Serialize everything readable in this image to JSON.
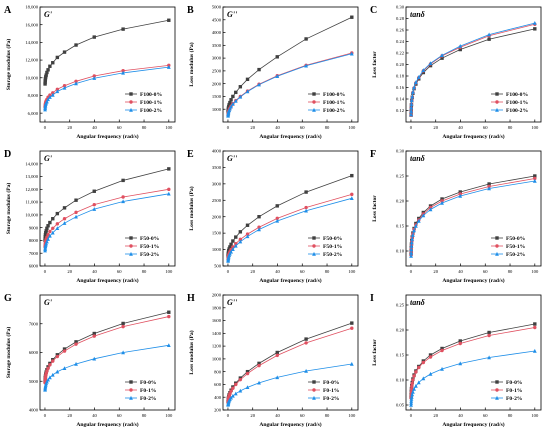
{
  "series_colors": [
    "#404040",
    "#e05060",
    "#1e8ee8"
  ],
  "series_markers": [
    "square",
    "circle",
    "triangle"
  ],
  "shared_x": [
    0.1,
    0.158,
    0.251,
    0.398,
    0.631,
    1,
    1.58,
    2.51,
    3.98,
    6.31,
    10,
    15.8,
    25.1,
    39.8,
    63.1,
    100
  ],
  "chart_data": [
    {
      "panel": "A",
      "type": "line",
      "annotation": "G'",
      "xlabel": "Angular frequency (rad/s)",
      "ylabel": "Storage modulus (Pa)",
      "xlim": [
        -4,
        105
      ],
      "ylim": [
        5000,
        18000
      ],
      "xticks": [
        0,
        20,
        40,
        60,
        80,
        100
      ],
      "yticks": [
        6000,
        8000,
        10000,
        12000,
        14000,
        16000,
        18000
      ],
      "ytick_labels": [
        "6,000",
        "8,000",
        "10,000",
        "12,000",
        "14,000",
        "16,000",
        "18,000"
      ],
      "legend": "lower-right",
      "series": [
        {
          "name": "F100-0%",
          "values": [
            9300,
            9500,
            9700,
            9900,
            10100,
            10300,
            10600,
            10900,
            11300,
            11700,
            12300,
            12900,
            13700,
            14600,
            15500,
            16500
          ]
        },
        {
          "name": "F100-1%",
          "values": [
            6700,
            6800,
            6950,
            7100,
            7250,
            7400,
            7550,
            7800,
            8050,
            8300,
            8700,
            9100,
            9600,
            10200,
            10800,
            11400
          ]
        },
        {
          "name": "F100-2%",
          "values": [
            6400,
            6550,
            6700,
            6850,
            7000,
            7150,
            7300,
            7550,
            7800,
            8050,
            8450,
            8850,
            9350,
            9950,
            10550,
            11200
          ]
        }
      ]
    },
    {
      "panel": "B",
      "type": "line",
      "annotation": "G''",
      "xlabel": "Angular frequency (rad/s)",
      "ylabel": "Loss modulus (Pa)",
      "xlim": [
        -4,
        105
      ],
      "ylim": [
        500,
        5000
      ],
      "xticks": [
        0,
        20,
        40,
        60,
        80,
        100
      ],
      "yticks": [
        1000,
        1500,
        2000,
        2500,
        3000,
        3500,
        4000,
        4500,
        5000
      ],
      "ytick_labels": [
        "1000",
        "1500",
        "2000",
        "2500",
        "3000",
        "3500",
        "4000",
        "4500",
        "5000"
      ],
      "legend": "lower-right",
      "series": [
        {
          "name": "F100-0%",
          "values": [
            900,
            950,
            1000,
            1050,
            1110,
            1180,
            1260,
            1370,
            1500,
            1660,
            1880,
            2170,
            2550,
            3050,
            3750,
            4600
          ]
        },
        {
          "name": "F100-1%",
          "values": [
            760,
            800,
            840,
            880,
            930,
            980,
            1040,
            1120,
            1220,
            1340,
            1500,
            1710,
            1980,
            2310,
            2720,
            3200
          ]
        },
        {
          "name": "F100-2%",
          "values": [
            740,
            780,
            820,
            860,
            910,
            960,
            1020,
            1100,
            1200,
            1320,
            1480,
            1690,
            1960,
            2290,
            2700,
            3170
          ]
        }
      ]
    },
    {
      "panel": "C",
      "type": "line",
      "annotation": "tanδ",
      "xlabel": "Angular frequency (rad/s)",
      "ylabel": "Loss factor",
      "xlim": [
        -4,
        105
      ],
      "ylim": [
        0.1,
        0.3
      ],
      "xticks": [
        0,
        20,
        40,
        60,
        80,
        100
      ],
      "yticks": [
        0.12,
        0.14,
        0.16,
        0.18,
        0.2,
        0.22,
        0.24,
        0.26,
        0.28,
        0.3
      ],
      "ytick_labels": [
        "0.12",
        "0.14",
        "0.16",
        "0.18",
        "0.20",
        "0.22",
        "0.24",
        "0.26",
        "0.28",
        "0.30"
      ],
      "legend": "lower-right",
      "series": [
        {
          "name": "F100-0%",
          "values": [
            0.112,
            0.118,
            0.124,
            0.13,
            0.137,
            0.143,
            0.15,
            0.158,
            0.166,
            0.175,
            0.186,
            0.198,
            0.211,
            0.226,
            0.244,
            0.262
          ]
        },
        {
          "name": "F100-1%",
          "values": [
            0.112,
            0.118,
            0.124,
            0.13,
            0.137,
            0.143,
            0.151,
            0.159,
            0.168,
            0.177,
            0.189,
            0.201,
            0.215,
            0.23,
            0.25,
            0.27
          ]
        },
        {
          "name": "F100-2%",
          "values": [
            0.113,
            0.119,
            0.125,
            0.131,
            0.138,
            0.144,
            0.152,
            0.16,
            0.169,
            0.178,
            0.19,
            0.202,
            0.216,
            0.232,
            0.252,
            0.272
          ]
        }
      ]
    },
    {
      "panel": "D",
      "type": "line",
      "annotation": "G'",
      "xlabel": "Angular frequency (rad/s)",
      "ylabel": "Storage modulus (Pa)",
      "xlim": [
        -4,
        105
      ],
      "ylim": [
        6000,
        15000
      ],
      "xticks": [
        0,
        20,
        40,
        60,
        80,
        100
      ],
      "yticks": [
        6000,
        7000,
        8000,
        9000,
        10000,
        11000,
        12000,
        13000,
        14000
      ],
      "ytick_labels": [
        "6000",
        "7000",
        "8000",
        "9000",
        "10,000",
        "11,000",
        "12,000",
        "13,000",
        "14,000"
      ],
      "legend": "lower-right",
      "series": [
        {
          "name": "F50-0%",
          "values": [
            8000,
            8150,
            8300,
            8450,
            8600,
            8750,
            8950,
            9150,
            9400,
            9700,
            10100,
            10550,
            11150,
            11850,
            12700,
            13600
          ]
        },
        {
          "name": "F50-1%",
          "values": [
            7500,
            7620,
            7740,
            7860,
            7980,
            8100,
            8250,
            8450,
            8700,
            8950,
            9300,
            9700,
            10200,
            10800,
            11400,
            12000
          ]
        },
        {
          "name": "F50-2%",
          "values": [
            7200,
            7310,
            7420,
            7530,
            7640,
            7750,
            7900,
            8100,
            8350,
            8600,
            8950,
            9350,
            9850,
            10450,
            11050,
            11650
          ]
        }
      ]
    },
    {
      "panel": "E",
      "type": "line",
      "annotation": "G''",
      "xlabel": "Angular frequency (rad/s)",
      "ylabel": "Loss modulus (Pa)",
      "xlim": [
        -4,
        105
      ],
      "ylim": [
        500,
        4000
      ],
      "xticks": [
        0,
        20,
        40,
        60,
        80,
        100
      ],
      "yticks": [
        500,
        1000,
        1500,
        2000,
        2500,
        3000,
        3500,
        4000
      ],
      "ytick_labels": [
        "500",
        "1000",
        "1500",
        "2000",
        "2500",
        "3000",
        "3500",
        "4000"
      ],
      "legend": "lower-right",
      "series": [
        {
          "name": "F50-0%",
          "values": [
            800,
            840,
            880,
            920,
            970,
            1020,
            1080,
            1160,
            1260,
            1380,
            1540,
            1740,
            2000,
            2330,
            2750,
            3250
          ]
        },
        {
          "name": "F50-1%",
          "values": [
            700,
            730,
            760,
            800,
            840,
            880,
            930,
            1000,
            1080,
            1180,
            1310,
            1470,
            1680,
            1950,
            2280,
            2680
          ]
        },
        {
          "name": "F50-2%",
          "values": [
            650,
            680,
            710,
            740,
            780,
            820,
            870,
            930,
            1010,
            1110,
            1240,
            1400,
            1610,
            1870,
            2180,
            2560
          ]
        }
      ]
    },
    {
      "panel": "F",
      "type": "line",
      "annotation": "tanδ",
      "xlabel": "Angular frequency (rad/s)",
      "ylabel": "Loss factor",
      "xlim": [
        -4,
        105
      ],
      "ylim": [
        0.07,
        0.3
      ],
      "xticks": [
        0,
        20,
        40,
        60,
        80,
        100
      ],
      "yticks": [
        0.1,
        0.15,
        0.2,
        0.25,
        0.3
      ],
      "ytick_labels": [
        "0.10",
        "0.15",
        "0.20",
        "0.25",
        "0.30"
      ],
      "legend": "lower-right",
      "series": [
        {
          "name": "F50-0%",
          "values": [
            0.094,
            0.1,
            0.107,
            0.114,
            0.121,
            0.128,
            0.136,
            0.145,
            0.155,
            0.165,
            0.177,
            0.19,
            0.204,
            0.218,
            0.234,
            0.25
          ]
        },
        {
          "name": "F50-1%",
          "values": [
            0.092,
            0.098,
            0.105,
            0.112,
            0.119,
            0.126,
            0.134,
            0.143,
            0.152,
            0.162,
            0.174,
            0.187,
            0.2,
            0.214,
            0.229,
            0.245
          ]
        },
        {
          "name": "F50-2%",
          "values": [
            0.09,
            0.096,
            0.103,
            0.11,
            0.117,
            0.124,
            0.132,
            0.141,
            0.15,
            0.16,
            0.171,
            0.183,
            0.196,
            0.21,
            0.225,
            0.24
          ]
        }
      ]
    },
    {
      "panel": "G",
      "type": "line",
      "annotation": "G'",
      "xlabel": "Angular frequency (rad/s)",
      "ylabel": "Storage modulus (Pa)",
      "xlim": [
        -4,
        105
      ],
      "ylim": [
        4000,
        8000
      ],
      "xticks": [
        0,
        20,
        40,
        60,
        80,
        100
      ],
      "yticks": [
        4000,
        5000,
        6000,
        7000
      ],
      "ytick_labels": [
        "4000",
        "5000",
        "6000",
        "7000"
      ],
      "legend": "lower-right",
      "series": [
        {
          "name": "F0-0%",
          "values": [
            5000,
            5060,
            5120,
            5180,
            5250,
            5320,
            5400,
            5500,
            5620,
            5750,
            5920,
            6120,
            6370,
            6660,
            7010,
            7400
          ]
        },
        {
          "name": "F0-1%",
          "values": [
            4950,
            5010,
            5070,
            5130,
            5200,
            5270,
            5350,
            5450,
            5570,
            5700,
            5860,
            6050,
            6290,
            6570,
            6900,
            7250
          ]
        },
        {
          "name": "F0-2%",
          "values": [
            4700,
            4740,
            4780,
            4820,
            4870,
            4920,
            4980,
            5050,
            5130,
            5220,
            5330,
            5450,
            5600,
            5780,
            6000,
            6250
          ]
        }
      ]
    },
    {
      "panel": "H",
      "type": "line",
      "annotation": "G''",
      "xlabel": "Angular frequency (rad/s)",
      "ylabel": "Loss modulus (Pa)",
      "xlim": [
        -4,
        105
      ],
      "ylim": [
        200,
        2000
      ],
      "xticks": [
        0,
        20,
        40,
        60,
        80,
        100
      ],
      "yticks": [
        200,
        400,
        600,
        800,
        1000,
        1200,
        1400,
        1600,
        1800,
        2000
      ],
      "ytick_labels": [
        "200",
        "400",
        "600",
        "800",
        "1000",
        "1200",
        "1400",
        "1600",
        "1800",
        "2000"
      ],
      "legend": "lower-right",
      "series": [
        {
          "name": "F0-0%",
          "values": [
            330,
            350,
            370,
            390,
            415,
            440,
            470,
            510,
            560,
            620,
            700,
            800,
            930,
            1100,
            1310,
            1560
          ]
        },
        {
          "name": "F0-1%",
          "values": [
            320,
            340,
            360,
            380,
            400,
            425,
            455,
            495,
            540,
            600,
            675,
            770,
            895,
            1055,
            1250,
            1480
          ]
        },
        {
          "name": "F0-2%",
          "values": [
            280,
            290,
            300,
            315,
            330,
            345,
            365,
            390,
            420,
            455,
            500,
            555,
            625,
            710,
            810,
            920
          ]
        }
      ]
    },
    {
      "panel": "I",
      "type": "line",
      "annotation": "tanδ",
      "xlabel": "Angular frequency (rad/s)",
      "ylabel": "Loss factor",
      "xlim": [
        -4,
        105
      ],
      "ylim": [
        0.04,
        0.27
      ],
      "xticks": [
        0,
        20,
        40,
        60,
        80,
        100
      ],
      "yticks": [
        0.05,
        0.1,
        0.15,
        0.2,
        0.25
      ],
      "ytick_labels": [
        "0.05",
        "0.10",
        "0.15",
        "0.20",
        "0.25"
      ],
      "legend": "lower-right",
      "series": [
        {
          "name": "F0-0%",
          "values": [
            0.066,
            0.071,
            0.077,
            0.083,
            0.089,
            0.095,
            0.102,
            0.11,
            0.118,
            0.127,
            0.138,
            0.15,
            0.163,
            0.178,
            0.195,
            0.212
          ]
        },
        {
          "name": "F0-1%",
          "values": [
            0.064,
            0.069,
            0.075,
            0.081,
            0.087,
            0.093,
            0.1,
            0.108,
            0.116,
            0.125,
            0.135,
            0.146,
            0.159,
            0.173,
            0.189,
            0.205
          ]
        },
        {
          "name": "F0-2%",
          "values": [
            0.05,
            0.054,
            0.058,
            0.062,
            0.066,
            0.071,
            0.076,
            0.082,
            0.088,
            0.095,
            0.103,
            0.112,
            0.122,
            0.133,
            0.145,
            0.158
          ]
        }
      ]
    }
  ]
}
